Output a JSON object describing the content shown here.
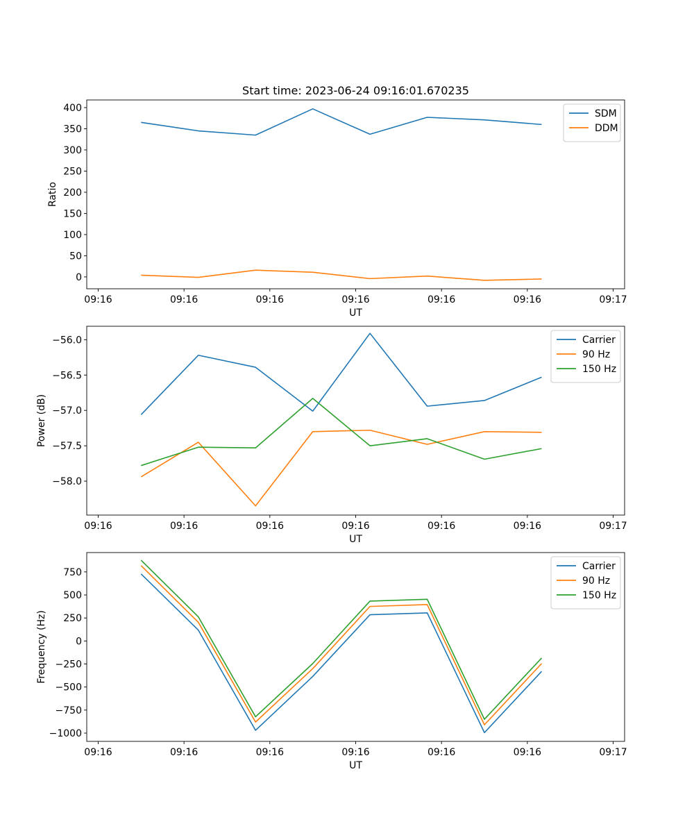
{
  "title": "Start time: 2023-06-24 09:16:01.670235",
  "chart_data": [
    {
      "type": "line",
      "title": "Start time: 2023-06-24 09:16:01.670235",
      "xlabel": "UT",
      "ylabel": "Ratio",
      "x_tick_labels": [
        "09:16",
        "09:16",
        "09:16",
        "09:16",
        "09:16",
        "09:16",
        "09:17"
      ],
      "y_ticks": [
        0,
        50,
        100,
        150,
        200,
        250,
        300,
        350,
        400
      ],
      "y_tick_labels": [
        "0",
        "50",
        "100",
        "150",
        "200",
        "250",
        "300",
        "350",
        "400"
      ],
      "ylim": [
        -28,
        418
      ],
      "legend_position": "top-right",
      "grid": false,
      "series": [
        {
          "name": "SDM",
          "color": "#1f77b4",
          "values": [
            365,
            345,
            335,
            397,
            337,
            377,
            371,
            360
          ]
        },
        {
          "name": "DDM",
          "color": "#ff7f0e",
          "values": [
            4,
            -1,
            16,
            11,
            -4,
            2,
            -8,
            -5
          ]
        }
      ]
    },
    {
      "type": "line",
      "title": "",
      "xlabel": "UT",
      "ylabel": "Power (dB)",
      "x_tick_labels": [
        "09:16",
        "09:16",
        "09:16",
        "09:16",
        "09:16",
        "09:16",
        "09:17"
      ],
      "y_ticks": [
        -58.0,
        -57.5,
        -57.0,
        -56.5,
        -56.0
      ],
      "y_tick_labels": [
        "−58.0",
        "−57.5",
        "−57.0",
        "−56.5",
        "−56.0"
      ],
      "ylim": [
        -58.48,
        -55.81
      ],
      "legend_position": "top-right",
      "grid": false,
      "series": [
        {
          "name": "Carrier",
          "color": "#1f77b4",
          "values": [
            -57.06,
            -56.22,
            -56.39,
            -57.01,
            -55.91,
            -56.94,
            -56.86,
            -56.53
          ]
        },
        {
          "name": "90 Hz",
          "color": "#ff7f0e",
          "values": [
            -57.94,
            -57.45,
            -58.35,
            -57.3,
            -57.28,
            -57.48,
            -57.3,
            -57.31
          ]
        },
        {
          "name": "150 Hz",
          "color": "#2ca02c",
          "values": [
            -57.78,
            -57.52,
            -57.53,
            -56.83,
            -57.5,
            -57.4,
            -57.69,
            -57.54
          ]
        }
      ]
    },
    {
      "type": "line",
      "title": "",
      "xlabel": "UT",
      "ylabel": "Frequency (Hz)",
      "x_tick_labels": [
        "09:16",
        "09:16",
        "09:16",
        "09:16",
        "09:16",
        "09:16",
        "09:17"
      ],
      "y_ticks": [
        -1000,
        -750,
        -500,
        -250,
        0,
        250,
        500,
        750
      ],
      "y_tick_labels": [
        "−1000",
        "−750",
        "−500",
        "−250",
        "0",
        "250",
        "500",
        "750"
      ],
      "ylim": [
        -1090,
        960
      ],
      "legend_position": "top-right",
      "grid": false,
      "series": [
        {
          "name": "Carrier",
          "color": "#1f77b4",
          "values": [
            728,
            118,
            -970,
            -385,
            285,
            305,
            -995,
            -330
          ]
        },
        {
          "name": "90 Hz",
          "color": "#ff7f0e",
          "values": [
            818,
            203,
            -880,
            -300,
            375,
            395,
            -910,
            -245
          ]
        },
        {
          "name": "150 Hz",
          "color": "#2ca02c",
          "values": [
            877,
            262,
            -823,
            -245,
            433,
            453,
            -850,
            -185
          ]
        }
      ]
    }
  ]
}
